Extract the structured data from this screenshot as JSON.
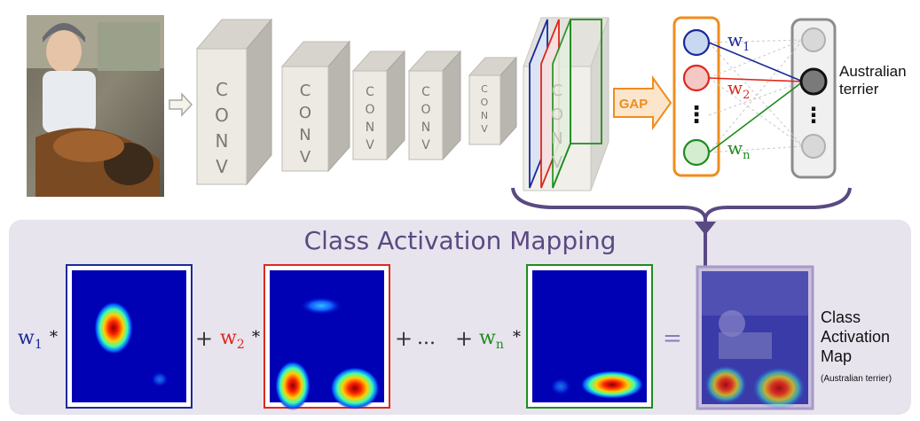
{
  "conv_label": "C O N V",
  "gap_label": "GAP",
  "weights": {
    "w": "w",
    "sub1": "1",
    "sub2": "2",
    "subn": "n",
    "dots": "⋮"
  },
  "output_class": {
    "line1": "Australian",
    "line2": "terrier"
  },
  "cam": {
    "title": "Class Activation Mapping",
    "plus": "+",
    "ellipsis": "...",
    "times": "*",
    "equals": "=",
    "result_line1": "Class",
    "result_line2": "Activation",
    "result_line3": "Map",
    "result_note": "(Australian terrier)"
  },
  "colors": {
    "blue": "#1a2a9a",
    "red": "#e0281c",
    "green": "#1e8c1e",
    "orange": "#f08c1e",
    "purple": "#5a4a82",
    "panel": "#e8e4ee"
  }
}
